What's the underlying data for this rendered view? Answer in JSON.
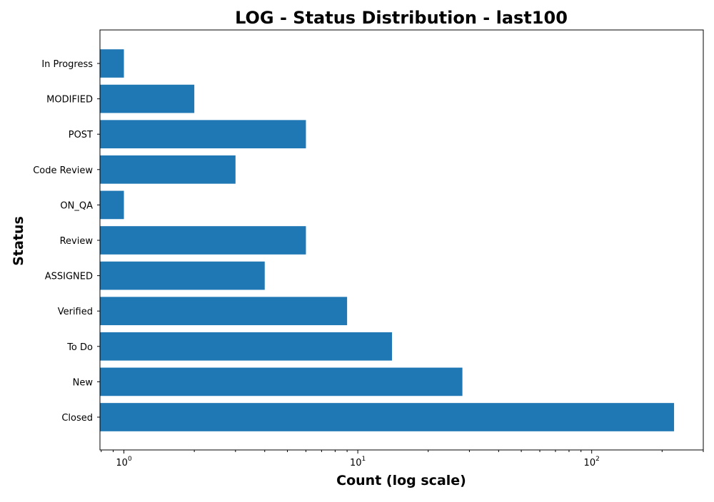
{
  "chart_data": {
    "type": "bar",
    "orientation": "horizontal",
    "title": "LOG - Status Distribution - last100",
    "xlabel": "Count (log scale)",
    "ylabel": "Status",
    "xscale": "log",
    "xlim": [
      0.79,
      300
    ],
    "x_ticks": [
      {
        "value": 1,
        "base": "10",
        "exp": "0"
      },
      {
        "value": 10,
        "base": "10",
        "exp": "1"
      },
      {
        "value": 100,
        "base": "10",
        "exp": "2"
      }
    ],
    "categories": [
      "In Progress",
      "MODIFIED",
      "POST",
      "Code Review",
      "ON_QA",
      "Review",
      "ASSIGNED",
      "Verified",
      "To Do",
      "New",
      "Closed"
    ],
    "values": [
      1,
      2,
      6,
      3,
      1,
      6,
      4,
      9,
      14,
      28,
      225
    ],
    "bar_color": "#1f77b4",
    "grid": false,
    "legend": "none"
  }
}
